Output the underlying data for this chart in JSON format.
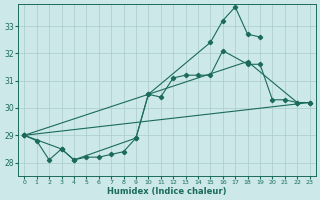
{
  "xlabel": "Humidex (Indice chaleur)",
  "background_color": "#cce8e8",
  "grid_color": "#aacccc",
  "line_color": "#1a6b5a",
  "xlim": [
    -0.5,
    23.5
  ],
  "ylim": [
    27.5,
    33.8
  ],
  "xticks": [
    0,
    1,
    2,
    3,
    4,
    5,
    6,
    7,
    8,
    9,
    10,
    11,
    12,
    13,
    14,
    15,
    16,
    17,
    18,
    19,
    20,
    21,
    22,
    23
  ],
  "yticks": [
    28,
    29,
    30,
    31,
    32,
    33
  ],
  "series": [
    {
      "x": [
        0,
        1,
        2,
        3,
        4,
        5,
        6,
        7,
        8,
        9,
        10,
        11,
        12,
        13,
        14,
        15,
        16,
        18,
        19,
        20,
        21,
        22,
        23
      ],
      "y": [
        29.0,
        28.8,
        28.1,
        28.5,
        28.1,
        28.2,
        28.2,
        28.3,
        28.4,
        28.9,
        30.5,
        30.4,
        31.1,
        31.2,
        31.2,
        31.2,
        32.1,
        31.6,
        31.6,
        30.3,
        30.3,
        30.2,
        30.2
      ]
    },
    {
      "x": [
        0,
        3,
        4,
        9,
        10,
        15,
        16,
        17,
        18,
        19
      ],
      "y": [
        29.0,
        28.5,
        28.1,
        28.9,
        30.5,
        32.4,
        33.2,
        33.7,
        32.7,
        32.6
      ]
    },
    {
      "x": [
        0,
        18,
        22
      ],
      "y": [
        29.0,
        31.7,
        30.2
      ]
    },
    {
      "x": [
        0,
        23
      ],
      "y": [
        29.0,
        30.2
      ]
    }
  ]
}
